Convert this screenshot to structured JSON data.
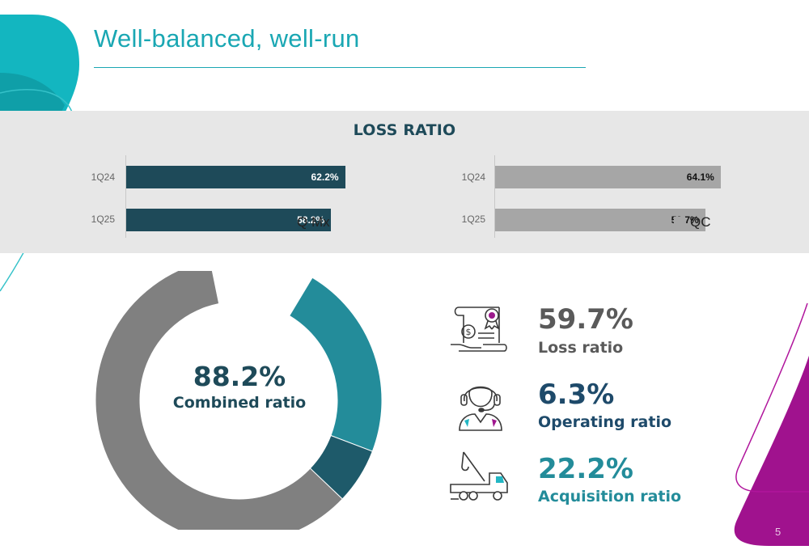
{
  "slide": {
    "title": "Well-balanced, well-run",
    "page_number": "5"
  },
  "loss_ratio": {
    "title": "LOSS RATIO",
    "q_mx": {
      "legend": "Q Mx",
      "color": "#1e4a59",
      "bars": [
        {
          "period": "1Q24",
          "value": 62.2,
          "label": "62.2%"
        },
        {
          "period": "1Q25",
          "value": 58.2,
          "label": "58.2%"
        }
      ]
    },
    "qc": {
      "legend": "QC",
      "color": "#a6a6a6",
      "bars": [
        {
          "period": "1Q24",
          "value": 64.1,
          "label": "64.1%"
        },
        {
          "period": "1Q25",
          "value": 59.7,
          "label": "59.7%"
        }
      ]
    }
  },
  "combined": {
    "value": "88.2%",
    "label": "Combined ratio",
    "segments": [
      {
        "name": "Loss ratio",
        "value": 59.7,
        "color": "#808080"
      },
      {
        "name": "Operating ratio",
        "value": 6.3,
        "color": "#1e5a6a"
      },
      {
        "name": "Acquisition ratio",
        "value": 22.2,
        "color": "#238c9a"
      }
    ],
    "total": 100
  },
  "ratios": [
    {
      "value": "59.7%",
      "label": "Loss ratio",
      "value_color": "#5a5a5a",
      "label_color": "#5a5a5a",
      "icon": "policy-money-icon"
    },
    {
      "value": "6.3%",
      "label": "Operating ratio",
      "value_color": "#1e4a6a",
      "label_color": "#1e4a6a",
      "icon": "call-center-agent-icon"
    },
    {
      "value": "22.2%",
      "label": "Acquisition ratio",
      "value_color": "#238c9a",
      "label_color": "#238c9a",
      "icon": "tow-truck-icon"
    }
  ],
  "chart_data": [
    {
      "type": "bar",
      "title": "LOSS RATIO",
      "categories": [
        "1Q24",
        "1Q25"
      ],
      "series": [
        {
          "name": "Q Mx",
          "values": [
            62.2,
            58.2
          ]
        }
      ],
      "xlim": [
        0,
        100
      ]
    },
    {
      "type": "bar",
      "title": "LOSS RATIO",
      "categories": [
        "1Q24",
        "1Q25"
      ],
      "series": [
        {
          "name": "QC",
          "values": [
            64.1,
            59.7
          ]
        }
      ],
      "xlim": [
        0,
        100
      ]
    },
    {
      "type": "pie",
      "title": "Combined ratio",
      "categories": [
        "Loss ratio",
        "Operating ratio",
        "Acquisition ratio"
      ],
      "values": [
        59.7,
        6.3,
        22.2
      ],
      "total": 100
    }
  ]
}
